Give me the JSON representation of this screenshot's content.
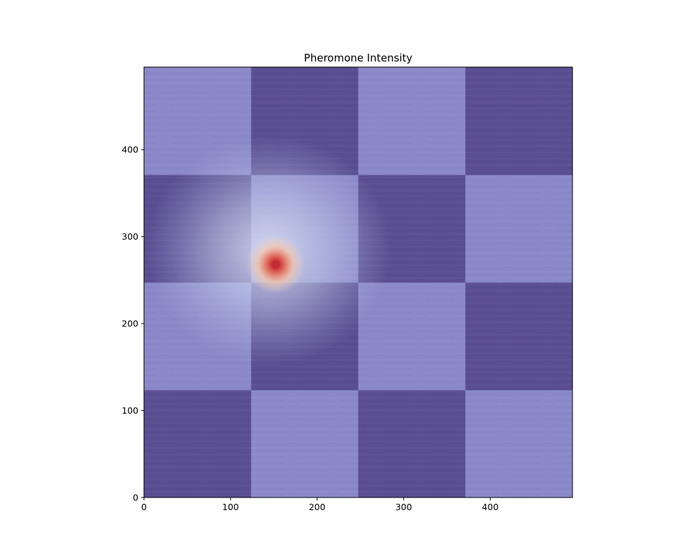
{
  "chart_data": {
    "type": "heatmap",
    "title": "Pheromone Intensity",
    "xlabel": "",
    "ylabel": "",
    "xlim": [
      0,
      495
    ],
    "ylim": [
      0,
      495
    ],
    "x_ticks": [
      0,
      100,
      200,
      300,
      400
    ],
    "y_ticks": [
      0,
      100,
      200,
      300,
      400
    ],
    "grid": false,
    "background": {
      "pattern": "checkerboard",
      "rows": 4,
      "cols": 4,
      "cell_size": 123.75,
      "light_color": "#8a88c8",
      "dark_color": "#5a4e92",
      "bottom_left": "dark"
    },
    "peak": {
      "x": 152,
      "y": 268,
      "colormap": "coolwarm"
    },
    "colors": {
      "peak_core": "#c42a36",
      "glow_warm": "#f2cdb4",
      "glow_cool": "#c8d2ee",
      "frame": "#000000"
    }
  }
}
